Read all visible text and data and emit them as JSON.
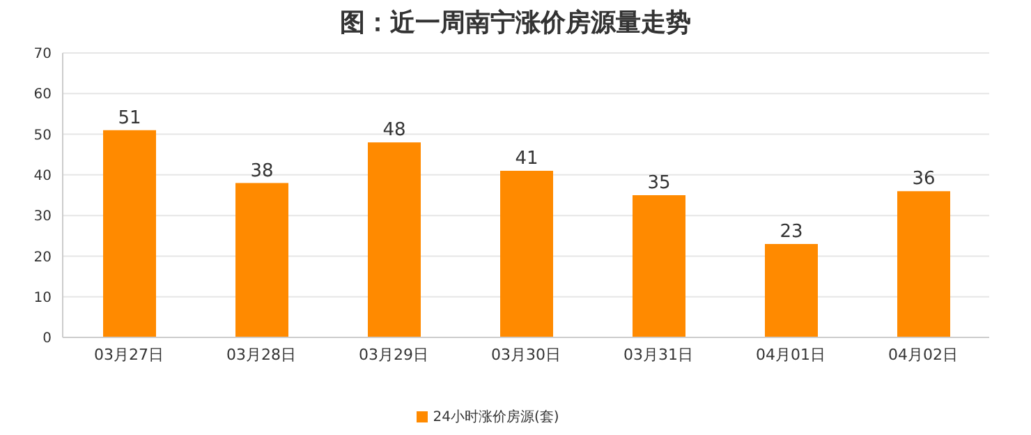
{
  "chart_data": {
    "type": "bar",
    "title": "图：近一周南宁涨价房源量走势",
    "categories": [
      "03月27日",
      "03月28日",
      "03月29日",
      "03月30日",
      "03月31日",
      "04月01日",
      "04月02日"
    ],
    "series": [
      {
        "name": "24小时涨价房源(套)",
        "color": "#ff8a00",
        "values": [
          51,
          38,
          48,
          41,
          35,
          23,
          36
        ]
      }
    ],
    "ylim": [
      0,
      70
    ],
    "yticks": [
      0,
      10,
      20,
      30,
      40,
      50,
      60,
      70
    ],
    "grid": "y",
    "legend": "bottom",
    "data_labels": true
  }
}
